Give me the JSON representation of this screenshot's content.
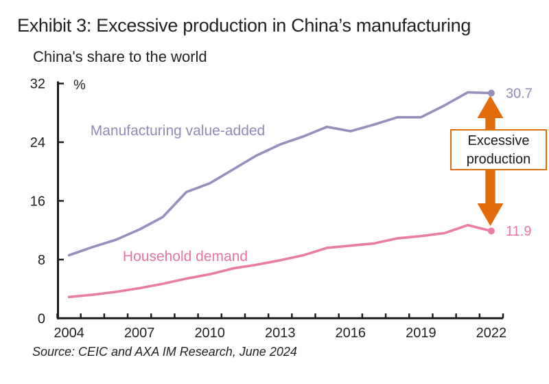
{
  "title": "Exhibit 3: Excessive production in China’s manufacturing",
  "subtitle": "China's share to the world",
  "unit_label": "%",
  "source": "Source: CEIC and AXA IM Research, June 2024",
  "annotation": {
    "line1": "Excessive",
    "line2": "production"
  },
  "colors": {
    "manufacturing_line": "#938FBE",
    "manufacturing_text": "#8F8ABB",
    "household_line": "#E87CA4",
    "household_text": "#E8749F",
    "arrow": "#E36C0A",
    "axis": "#1a1a1a",
    "tick_text": "#212121"
  },
  "chart_data": {
    "type": "line",
    "x": [
      2004,
      2005,
      2006,
      2007,
      2008,
      2009,
      2010,
      2011,
      2012,
      2013,
      2014,
      2015,
      2016,
      2017,
      2018,
      2019,
      2020,
      2021,
      2022
    ],
    "x_tick_labels": [
      "2004",
      "2007",
      "2010",
      "2013",
      "2016",
      "2019",
      "2022"
    ],
    "y_ticks": [
      0,
      8,
      16,
      24,
      32
    ],
    "ylim": [
      0,
      32
    ],
    "ylabel": "%",
    "grid": false,
    "legend_position": "inline-labels",
    "series": [
      {
        "name": "Manufacturing value-added",
        "values": [
          8.6,
          9.7,
          10.7,
          12.1,
          13.8,
          17.2,
          18.4,
          20.3,
          22.2,
          23.7,
          24.8,
          26.1,
          25.5,
          26.4,
          27.4,
          27.4,
          29.0,
          30.8,
          30.7
        ],
        "end_label": "30.7"
      },
      {
        "name": "Household demand",
        "values": [
          2.9,
          3.2,
          3.6,
          4.1,
          4.7,
          5.4,
          6.0,
          6.8,
          7.3,
          7.9,
          8.6,
          9.6,
          9.9,
          10.2,
          10.9,
          11.2,
          11.6,
          12.7,
          11.9
        ],
        "end_label": "11.9"
      }
    ],
    "annotation_label": "Excessive production"
  }
}
